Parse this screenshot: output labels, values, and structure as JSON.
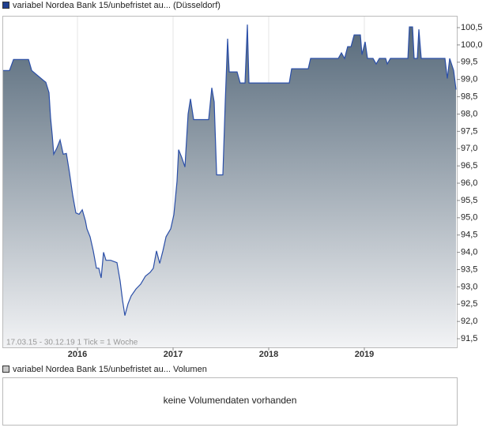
{
  "chart_data": {
    "type": "area",
    "annotation": "17.03.15 - 30.12.19   1 Tick = 1 Woche",
    "x": [
      2015.223,
      2015.289,
      2015.331,
      2015.488,
      2015.521,
      2015.645,
      2015.669,
      2015.702,
      2015.719,
      2015.736,
      2015.752,
      2015.785,
      2015.818,
      2015.851,
      2015.884,
      2015.917,
      2015.95,
      2015.983,
      2016.017,
      2016.05,
      2016.083,
      2016.099,
      2016.132,
      2016.165,
      2016.198,
      2016.223,
      2016.248,
      2016.273,
      2016.298,
      2016.347,
      2016.413,
      2016.446,
      2016.471,
      2016.496,
      2016.529,
      2016.562,
      2016.612,
      2016.661,
      2016.711,
      2016.76,
      2016.793,
      2016.826,
      2016.86,
      2016.893,
      2016.926,
      2016.975,
      2017.008,
      2017.041,
      2017.058,
      2017.091,
      2017.124,
      2017.157,
      2017.182,
      2017.215,
      2017.372,
      2017.405,
      2017.43,
      2017.455,
      2017.521,
      2017.545,
      2017.57,
      2017.587,
      2017.669,
      2017.702,
      2017.752,
      2017.777,
      2017.793,
      2018.215,
      2018.24,
      2018.413,
      2018.438,
      2018.727,
      2018.76,
      2018.793,
      2018.826,
      2018.86,
      2018.893,
      2018.959,
      2018.975,
      2019.008,
      2019.033,
      2019.091,
      2019.124,
      2019.157,
      2019.223,
      2019.24,
      2019.273,
      2019.455,
      2019.471,
      2019.504,
      2019.521,
      2019.554,
      2019.57,
      2019.595,
      2019.843,
      2019.868,
      2019.893,
      2019.934,
      2019.959
    ],
    "series": [
      {
        "name": "variabel Nordea Bank 15/unbefristet au... (Düsseldorf)",
        "color": "#2b4fa8",
        "values": [
          99.26,
          99.26,
          99.58,
          99.58,
          99.26,
          98.97,
          98.92,
          98.62,
          97.89,
          97.39,
          96.84,
          97.02,
          97.25,
          96.84,
          96.86,
          96.29,
          95.65,
          95.14,
          95.1,
          95.23,
          94.91,
          94.68,
          94.45,
          94.04,
          93.54,
          93.54,
          93.26,
          94.0,
          93.77,
          93.77,
          93.7,
          93.17,
          92.62,
          92.17,
          92.51,
          92.74,
          92.94,
          93.08,
          93.31,
          93.42,
          93.54,
          94.04,
          93.68,
          94.04,
          94.45,
          94.68,
          95.09,
          96.06,
          96.97,
          96.74,
          96.47,
          98.0,
          98.44,
          97.84,
          97.84,
          98.76,
          98.35,
          96.24,
          96.24,
          98.35,
          100.18,
          99.22,
          99.22,
          98.9,
          98.9,
          100.59,
          98.9,
          98.9,
          99.31,
          99.31,
          99.61,
          99.61,
          99.77,
          99.61,
          99.95,
          99.95,
          100.29,
          100.29,
          99.72,
          100.09,
          99.61,
          99.61,
          99.45,
          99.61,
          99.61,
          99.45,
          99.61,
          99.61,
          100.52,
          100.52,
          99.61,
          99.61,
          100.45,
          99.61,
          99.61,
          99.03,
          99.61,
          99.26,
          98.71
        ]
      }
    ],
    "xlim": [
      2015.223,
      2019.967
    ],
    "xticks": [
      2016,
      2017,
      2018,
      2019
    ],
    "ylim": [
      91.25,
      100.82
    ],
    "yticks": [
      {
        "value": 91.5,
        "label": "91,5"
      },
      {
        "value": 92,
        "label": "92,0"
      },
      {
        "value": 92.5,
        "label": "92,5"
      },
      {
        "value": 93,
        "label": "93,0"
      },
      {
        "value": 93.5,
        "label": "93,5"
      },
      {
        "value": 94,
        "label": "94,0"
      },
      {
        "value": 94.5,
        "label": "94,5"
      },
      {
        "value": 95,
        "label": "95,0"
      },
      {
        "value": 95.5,
        "label": "95,5"
      },
      {
        "value": 96,
        "label": "96,0"
      },
      {
        "value": 96.5,
        "label": "96,5"
      },
      {
        "value": 97,
        "label": "97,0"
      },
      {
        "value": 97.5,
        "label": "97,5"
      },
      {
        "value": 98,
        "label": "98,0"
      },
      {
        "value": 98.5,
        "label": "98,5"
      },
      {
        "value": 99,
        "label": "99,0"
      },
      {
        "value": 99.5,
        "label": "99,5"
      },
      {
        "value": 100,
        "label": "100,0"
      },
      {
        "value": 100.5,
        "label": "100,5"
      }
    ],
    "grid": true
  },
  "volume_panel": {
    "legend": "variabel Nordea Bank 15/unbefristet au... Volumen",
    "note": "keine Volumendaten vorhanden"
  }
}
